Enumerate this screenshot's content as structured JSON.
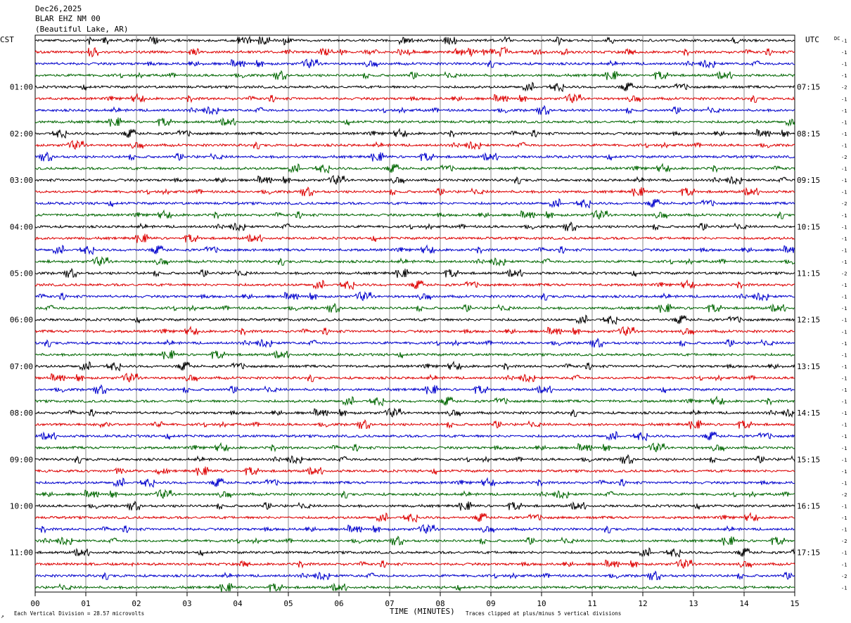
{
  "header": {
    "date": "Dec26,2025",
    "station": "BLAR EHZ NM 00",
    "location": "(Beautiful Lake, AR)"
  },
  "left_zone": "CST",
  "right_zone": "UTC",
  "dc_label": "DC",
  "chart_data": {
    "type": "line",
    "title": "",
    "xlabel": "TIME (MINUTES)",
    "ylabel": "",
    "xlim": [
      0,
      15
    ],
    "x_ticks": [
      "00",
      "01",
      "02",
      "03",
      "04",
      "05",
      "06",
      "07",
      "08",
      "09",
      "10",
      "11",
      "12",
      "13",
      "14",
      "15"
    ],
    "trace_count": 48,
    "minutes_per_trace": 15,
    "trace_colors": [
      "#000000",
      "#dd0000",
      "#0000cc",
      "#006600"
    ],
    "left_hour_labels": [
      "01:00",
      "02:00",
      "03:00",
      "04:00",
      "05:00",
      "06:00",
      "07:00",
      "08:00",
      "09:00",
      "10:00",
      "11:00"
    ],
    "right_hour_labels": [
      "07:15",
      "08:15",
      "09:15",
      "10:15",
      "11:15",
      "12:15",
      "13:15",
      "14:15",
      "15:15",
      "16:15",
      "17:15"
    ],
    "hour_label_first_trace": 4,
    "dc_offsets": [
      "-1",
      "-1",
      "-1",
      "-1",
      "-2",
      "-1",
      "-1",
      "-1",
      "-1",
      "-1",
      "-2",
      "-1",
      "-1",
      "-1",
      "-2",
      "-1",
      "-1",
      "-1",
      "-1",
      "-1",
      "-2",
      "-1",
      "-1",
      "-1",
      "-1",
      "-1",
      "-1",
      "-1",
      "-1",
      "-1",
      "-1",
      "-1",
      "-1",
      "-1",
      "-1",
      "-1",
      "-1",
      "-1",
      "-1",
      "-2",
      "-1",
      "-1",
      "-1",
      "-2",
      "-1",
      "-1",
      "-2",
      "-1"
    ]
  },
  "footer": {
    "scale_note": "Each Vertical Division =   28.57 microvolts",
    "clip_note": "Traces clipped at plus/minus 5 vertical divisions",
    "logo_glyph": "↗"
  }
}
